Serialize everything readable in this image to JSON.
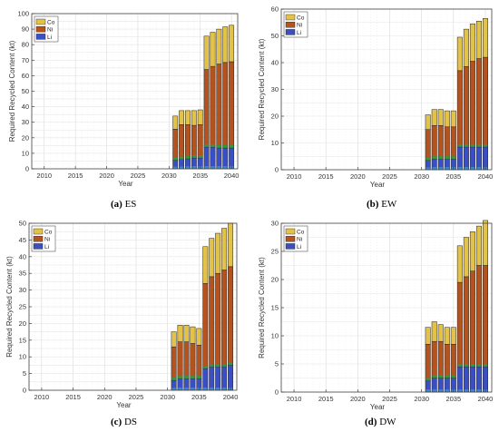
{
  "colors": {
    "Li": "#3a4fc4",
    "Ni": "#b5531f",
    "Co": "#e3c24a",
    "Li_base": "#3a86c6",
    "Ni_base": "#2e9a3e",
    "grid": "#d9d9d9",
    "axis": "#404040"
  },
  "captions": [
    {
      "letter": "(a)",
      "name": "ES"
    },
    {
      "letter": "(b)",
      "name": "EW"
    },
    {
      "letter": "(c)",
      "name": "DS"
    },
    {
      "letter": "(d)",
      "name": "DW"
    }
  ],
  "chart_data": [
    {
      "type": "bar",
      "stacked": true,
      "xlabel": "Year",
      "ylabel": "Required Recycled Content (kt)",
      "xlim": [
        2008,
        2041
      ],
      "ylim": [
        0,
        100
      ],
      "xticks": [
        2010,
        2015,
        2020,
        2025,
        2030,
        2035,
        2040
      ],
      "yticks": [
        0,
        10,
        20,
        30,
        40,
        50,
        60,
        70,
        80,
        90,
        100
      ],
      "legend": [
        "Co",
        "Ni",
        "Li"
      ],
      "legend_position": "top-left",
      "grid": true,
      "x": [
        2031,
        2032,
        2033,
        2034,
        2035,
        2036,
        2037,
        2038,
        2039,
        2040
      ],
      "series": [
        {
          "name": "Li",
          "values": [
            5.5,
            6.0,
            6.5,
            7.0,
            7.0,
            14.0,
            14.0,
            13.5,
            13.5,
            13.5
          ]
        },
        {
          "name": "Ni",
          "values": [
            20.0,
            22.5,
            22.0,
            21.0,
            21.5,
            50.0,
            52.0,
            54.0,
            55.0,
            55.5
          ]
        },
        {
          "name": "Co",
          "values": [
            8.5,
            9.0,
            9.0,
            9.5,
            9.5,
            21.5,
            22.0,
            22.5,
            23.0,
            23.5
          ]
        }
      ]
    },
    {
      "type": "bar",
      "stacked": true,
      "xlabel": "Year",
      "ylabel": "Required Recycled Content (kt)",
      "xlim": [
        2008,
        2041
      ],
      "ylim": [
        0,
        60
      ],
      "xticks": [
        2010,
        2015,
        2020,
        2025,
        2030,
        2035,
        2040
      ],
      "yticks": [
        0,
        10,
        20,
        30,
        40,
        50,
        60
      ],
      "legend": [
        "Co",
        "Ni",
        "Li"
      ],
      "legend_position": "top-left",
      "grid": true,
      "x": [
        2031,
        2032,
        2033,
        2034,
        2035,
        2036,
        2037,
        2038,
        2039,
        2040
      ],
      "series": [
        {
          "name": "Li",
          "values": [
            3.5,
            4.0,
            4.0,
            4.0,
            4.0,
            8.5,
            8.5,
            8.5,
            8.5,
            8.5
          ]
        },
        {
          "name": "Ni",
          "values": [
            11.5,
            12.5,
            12.5,
            12.0,
            12.0,
            28.5,
            30.0,
            32.0,
            33.0,
            33.5
          ]
        },
        {
          "name": "Co",
          "values": [
            5.5,
            6.0,
            6.0,
            6.0,
            6.0,
            12.5,
            14.0,
            14.0,
            14.0,
            14.5
          ]
        }
      ]
    },
    {
      "type": "bar",
      "stacked": true,
      "xlabel": "Year",
      "ylabel": "Required Recycled Content (kt)",
      "xlim": [
        2008,
        2041
      ],
      "ylim": [
        0,
        50
      ],
      "xticks": [
        2010,
        2015,
        2020,
        2025,
        2030,
        2035,
        2040
      ],
      "yticks": [
        0,
        5,
        10,
        15,
        20,
        25,
        30,
        35,
        40,
        45,
        50
      ],
      "legend": [
        "Co",
        "Ni",
        "Li"
      ],
      "legend_position": "top-left",
      "grid": true,
      "x": [
        2031,
        2032,
        2033,
        2034,
        2035,
        2036,
        2037,
        2038,
        2039,
        2040
      ],
      "series": [
        {
          "name": "Li",
          "values": [
            3.0,
            3.5,
            3.5,
            3.5,
            3.5,
            6.5,
            7.0,
            7.0,
            7.0,
            7.5
          ]
        },
        {
          "name": "Ni",
          "values": [
            10.0,
            11.0,
            11.0,
            10.5,
            10.0,
            25.5,
            27.0,
            28.0,
            29.0,
            29.5
          ]
        },
        {
          "name": "Co",
          "values": [
            4.5,
            5.0,
            5.0,
            5.0,
            5.0,
            11.0,
            11.5,
            12.0,
            12.5,
            13.0
          ]
        }
      ]
    },
    {
      "type": "bar",
      "stacked": true,
      "xlabel": "Year",
      "ylabel": "Required Recycled Content (kt)",
      "xlim": [
        2008,
        2041
      ],
      "ylim": [
        0,
        30
      ],
      "xticks": [
        2010,
        2015,
        2020,
        2025,
        2030,
        2035,
        2040
      ],
      "yticks": [
        0,
        5,
        10,
        15,
        20,
        25,
        30
      ],
      "legend": [
        "Co",
        "Ni",
        "Li"
      ],
      "legend_position": "top-left",
      "grid": true,
      "x": [
        2031,
        2032,
        2033,
        2034,
        2035,
        2036,
        2037,
        2038,
        2039,
        2040
      ],
      "series": [
        {
          "name": "Li",
          "values": [
            2.0,
            2.5,
            2.5,
            2.5,
            2.5,
            4.5,
            4.5,
            4.5,
            4.5,
            4.5
          ]
        },
        {
          "name": "Ni",
          "values": [
            6.5,
            6.5,
            6.5,
            6.0,
            6.0,
            15.0,
            16.0,
            17.0,
            18.0,
            18.0
          ]
        },
        {
          "name": "Co",
          "values": [
            3.0,
            3.5,
            3.0,
            3.0,
            3.0,
            6.5,
            7.0,
            7.0,
            7.0,
            8.0
          ]
        }
      ]
    }
  ]
}
